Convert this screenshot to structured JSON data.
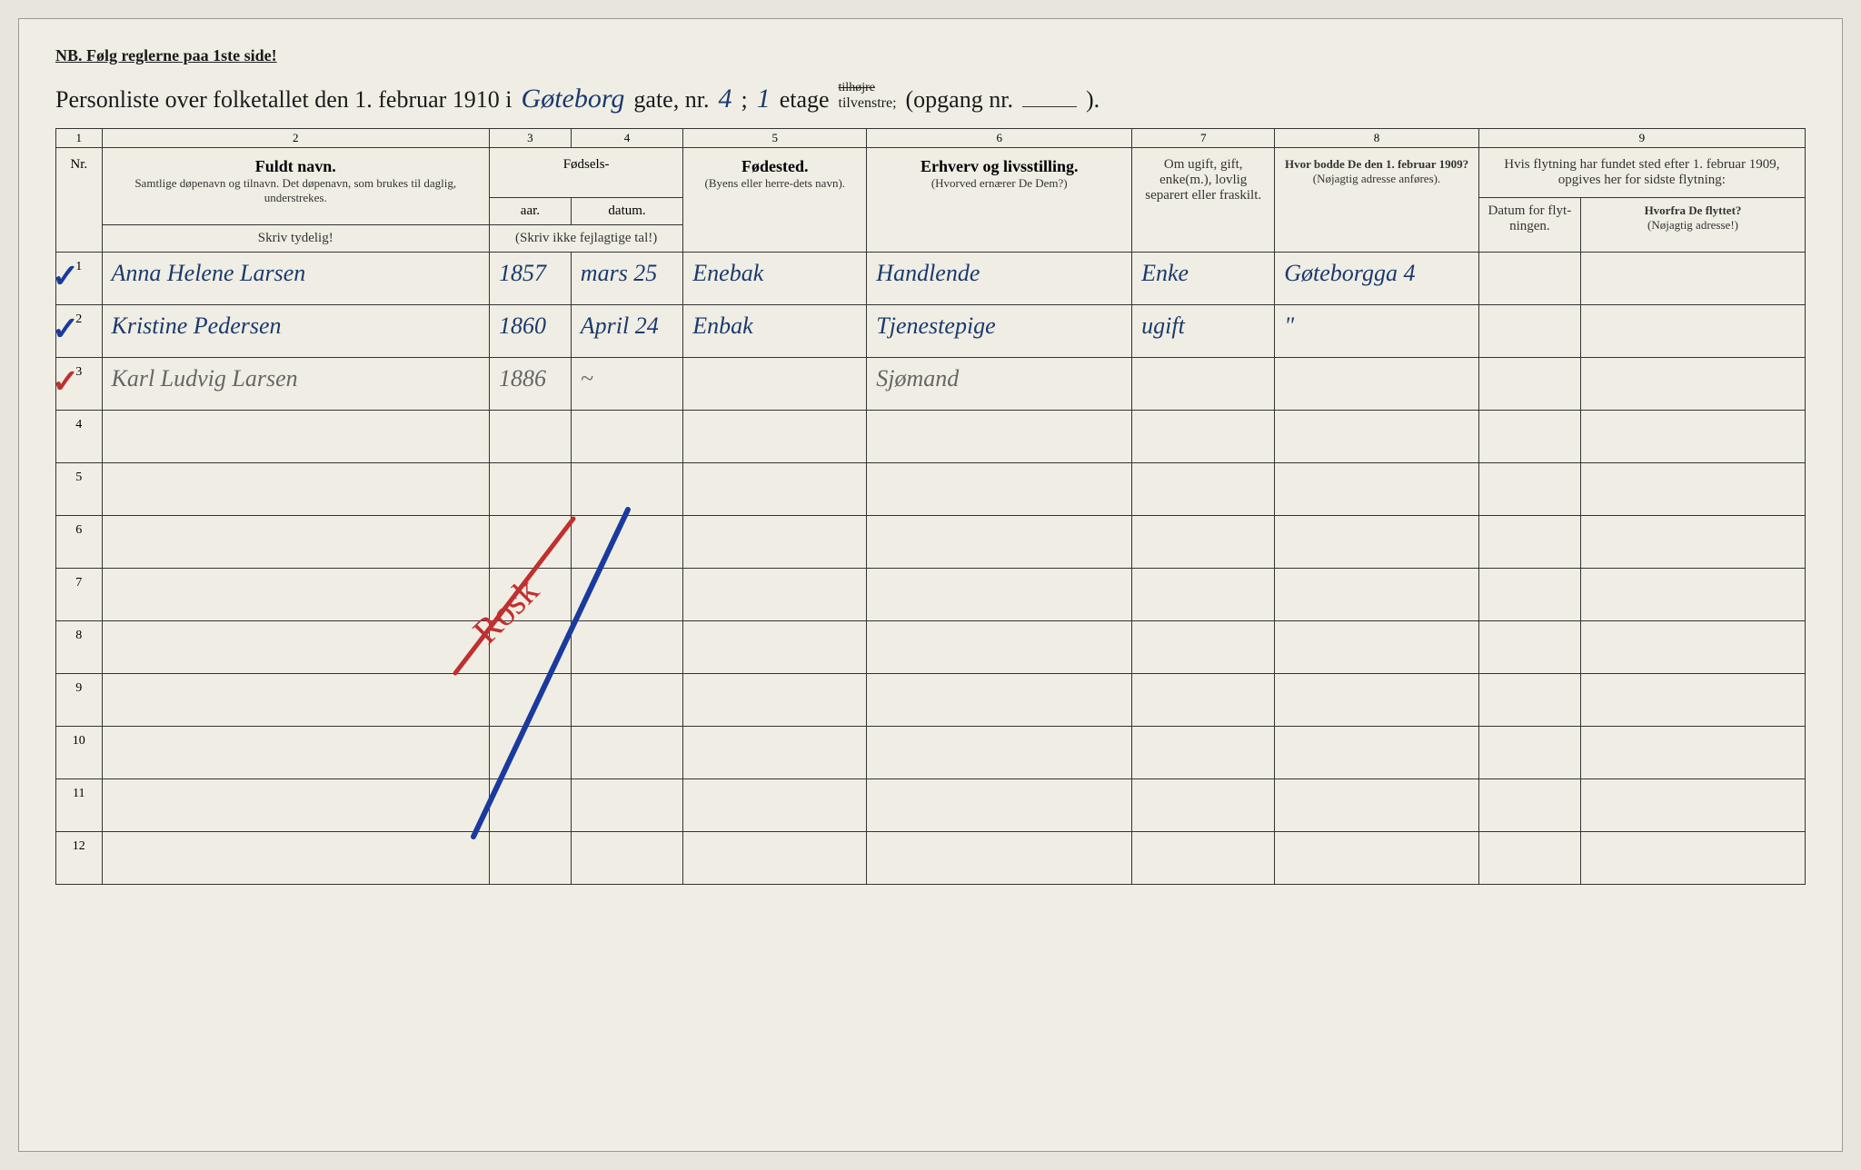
{
  "nb_line": "NB.   Følg reglerne paa 1ste side!",
  "title": {
    "prefix": "Personliste over folketallet den 1. februar 1910 i",
    "gate_hw": "Gøteborg",
    "gate_label": "gate, nr.",
    "gate_nr_hw": "4",
    "semi": ";",
    "etage_hw": "1",
    "etage_label": "etage",
    "tilvenstre": "tilvenstre;",
    "opgang": "(opgang nr.",
    "opgang_end": ")."
  },
  "col_nums": [
    "1",
    "2",
    "3",
    "4",
    "5",
    "6",
    "7",
    "8",
    "9"
  ],
  "headers": {
    "nr": "Nr.",
    "fuldt_navn": "Fuldt navn.",
    "fuldt_sub": "Samtlige døpenavn og tilnavn. Det døpenavn, som brukes til daglig, understrekes.",
    "fodsels": "Fødsels-",
    "aar": "aar.",
    "datum": "datum.",
    "skriv_ikke": "(Skriv ikke fejlagtige tal!)",
    "fodested": "Fødested.",
    "fodested_sub": "(Byens eller herre-dets navn).",
    "erhverv": "Erhverv og livsstilling.",
    "erhverv_sub": "(Hvorved ernærer De Dem?)",
    "om_ugift": "Om ugift, gift, enke(m.), lovlig separert eller fraskilt.",
    "hvor_bodde": "Hvor bodde De den 1. februar 1909?",
    "hvor_bodde_sub": "(Nøjagtig adresse anføres).",
    "hvis_flytning": "Hvis flytning har fundet sted efter 1. februar 1909, opgives her for sidste flytning:",
    "datum_flyt": "Datum for flyt-ningen.",
    "hvorfra": "Hvorfra De flyttet?",
    "hvorfra_sub": "(Nøjagtig adresse!)",
    "skriv_tydelig": "Skriv tydelig!"
  },
  "rows": [
    {
      "nr": "1",
      "check_color": "blue",
      "navn": "Anna Helene Larsen",
      "aar": "1857",
      "datum": "mars 25",
      "fodested": "Enebak",
      "erhverv": "Handlende",
      "om_ugift": "Enke",
      "hvor_bodde": "Gøteborgga 4",
      "navn_class": "hw"
    },
    {
      "nr": "2",
      "check_color": "blue",
      "navn": "Kristine Pedersen",
      "aar": "1860",
      "datum": "April 24",
      "fodested": "Enbak",
      "erhverv": "Tjenestepige",
      "om_ugift": "ugift",
      "hvor_bodde": "\"",
      "navn_class": "hw"
    },
    {
      "nr": "3",
      "check_color": "red",
      "navn": "Karl Ludvig Larsen",
      "aar": "1886",
      "datum": "~",
      "fodested": "",
      "erhverv": "Sjømand",
      "om_ugift": "",
      "hvor_bodde": "",
      "navn_class": "hw-gray"
    }
  ],
  "empty_rows": [
    "4",
    "5",
    "6",
    "7",
    "8",
    "9",
    "10",
    "11",
    "12"
  ],
  "colors": {
    "paper": "#f0eee4",
    "ink": "#1a1a1a",
    "handwriting_blue": "#1a3a6e",
    "handwriting_gray": "#666",
    "check_blue": "#1a3a9e",
    "check_red": "#c03030",
    "border": "#333"
  }
}
